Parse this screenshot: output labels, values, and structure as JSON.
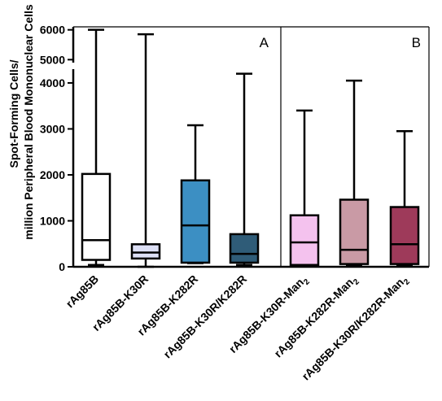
{
  "chart_data": {
    "type": "box",
    "ylabel_line1": "Spot-Forming Cells/",
    "ylabel_line2": "million Peripheral Blood Mononuclear Cells",
    "y_axis": {
      "broken": true,
      "lower_range": [
        0,
        4300
      ],
      "upper_range": [
        4900,
        6100
      ],
      "lower_ticks": [
        "0",
        "1000",
        "2000",
        "3000",
        "4000"
      ],
      "upper_ticks": [
        "5000",
        "6000"
      ]
    },
    "panels": [
      {
        "label": "A",
        "categories": [
          "rAg85B",
          "rAg85B-K30R",
          "rAg85B-K282R",
          "rAg85B-K30R/K282R"
        ]
      },
      {
        "label": "B",
        "categories": [
          "rAg85B-K30R-Man2",
          "rAg85B-K282R-Man2",
          "rAg85B-K30R/K282R-Man2"
        ]
      }
    ],
    "x_labels": [
      {
        "base": "rAg85B",
        "sub": ""
      },
      {
        "base": "rAg85B-K30R",
        "sub": ""
      },
      {
        "base": "rAg85B-K282R",
        "sub": ""
      },
      {
        "base": "rAg85B-K30R/K282R",
        "sub": ""
      },
      {
        "base": "rAg85B-K30R-Man",
        "sub": "2"
      },
      {
        "base": "rAg85B-K282R-Man",
        "sub": "2"
      },
      {
        "base": "rAg85B-K30R/K282R-Man",
        "sub": "2"
      }
    ],
    "boxes": [
      {
        "category": "rAg85B",
        "min": 40,
        "q1": 150,
        "median": 580,
        "q3": 2020,
        "max": 6000,
        "color": "#ffffff"
      },
      {
        "category": "rAg85B-K30R",
        "min": 0,
        "q1": 180,
        "median": 310,
        "q3": 490,
        "max": 5850,
        "color": "#dde0f6"
      },
      {
        "category": "rAg85B-K282R",
        "min": 80,
        "q1": 90,
        "median": 900,
        "q3": 1880,
        "max": 3080,
        "color": "#3c8fc3"
      },
      {
        "category": "rAg85B-K30R/K282R",
        "min": 40,
        "q1": 90,
        "median": 280,
        "q3": 710,
        "max": 4200,
        "color": "#2f5c78"
      },
      {
        "category": "rAg85B-K30R-Man2",
        "min": 30,
        "q1": 40,
        "median": 530,
        "q3": 1120,
        "max": 3400,
        "color": "#f4c2ee"
      },
      {
        "category": "rAg85B-K282R-Man2",
        "min": 30,
        "q1": 60,
        "median": 370,
        "q3": 1460,
        "max": 4050,
        "color": "#c99aa5"
      },
      {
        "category": "rAg85B-K30R/K282R-Man2",
        "min": 40,
        "q1": 60,
        "median": 490,
        "q3": 1300,
        "max": 2950,
        "color": "#9e3a5a"
      }
    ]
  }
}
